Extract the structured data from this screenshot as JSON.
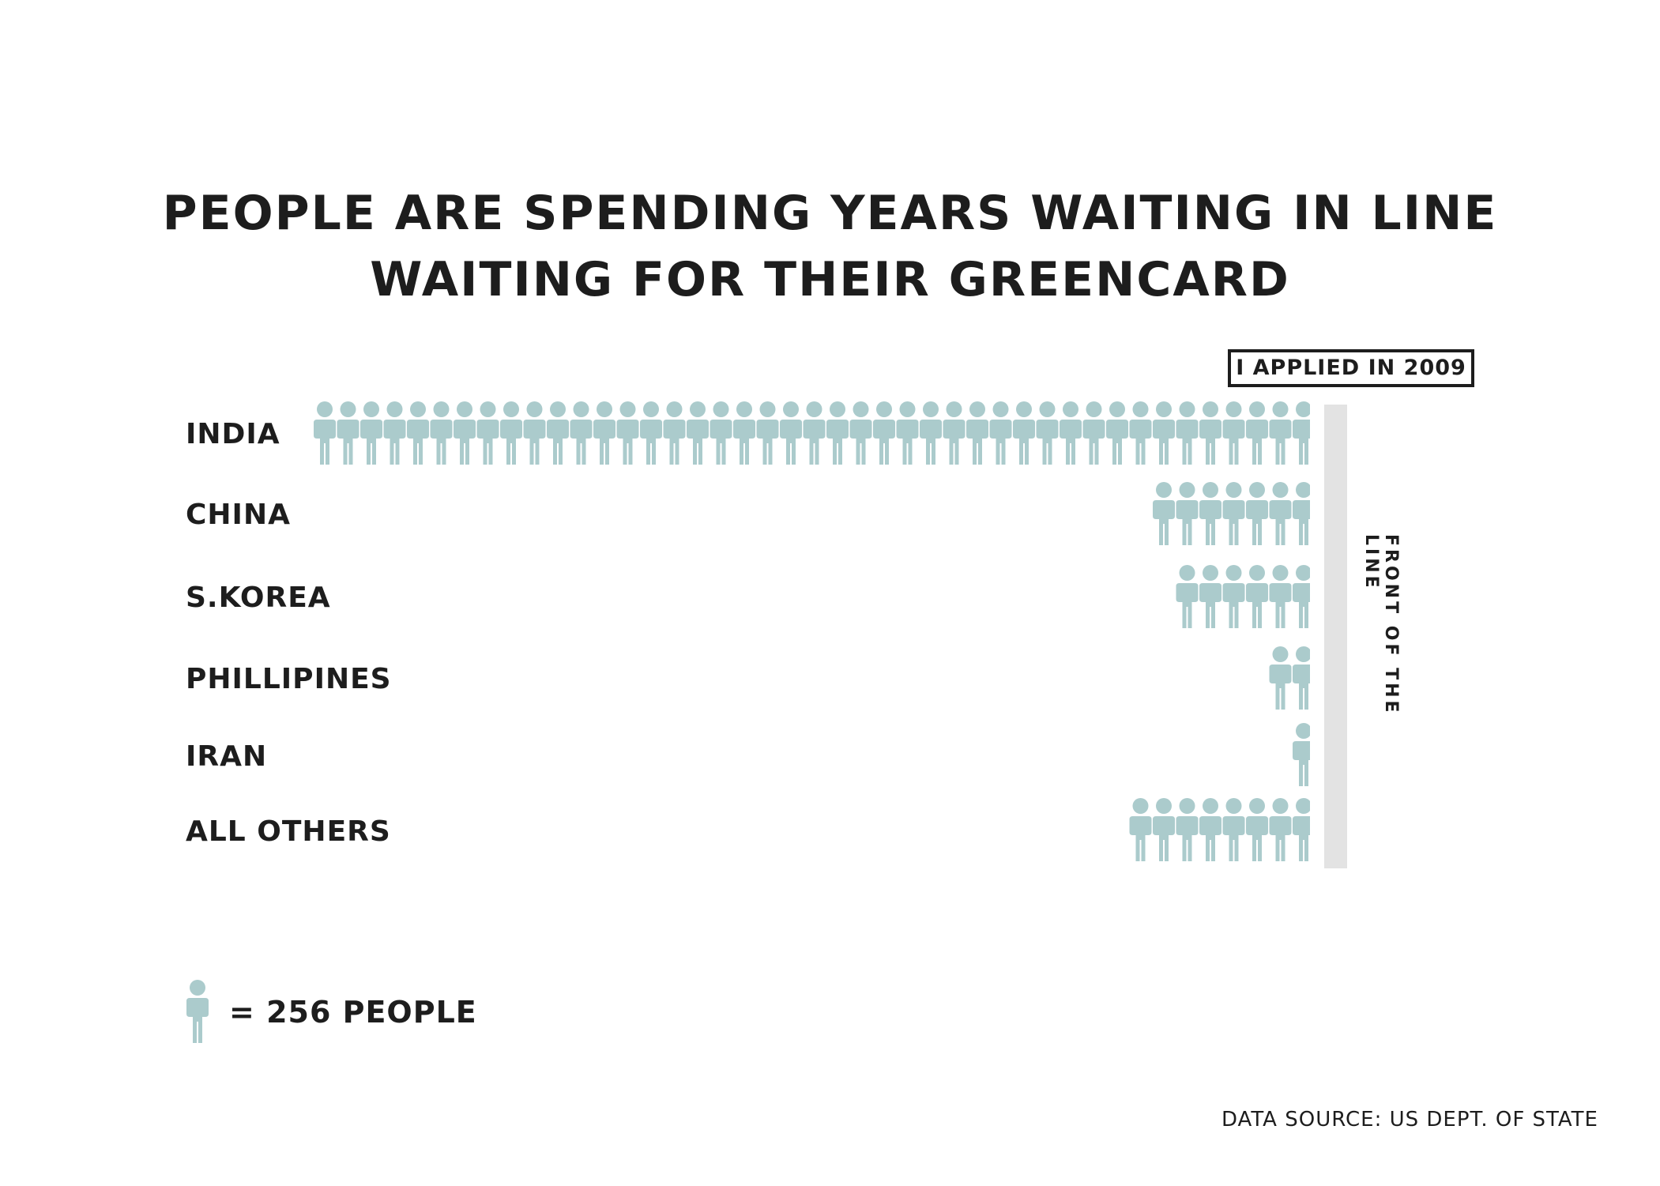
{
  "title": {
    "line1": "PEOPLE ARE SPENDING YEARS WAITING IN LINE",
    "line2": "WAITING FOR THEIR GREENCARD"
  },
  "callout": "I APPLIED IN 2009",
  "front_label": "FRONT OF THE LINE",
  "legend": {
    "text": "= 256 PEOPLE",
    "icon": "person-icon"
  },
  "source": "DATA SOURCE: US DEPT. OF STATE",
  "colors": {
    "icon": "#abcbcc",
    "bar": "#e3e3e3",
    "text": "#1d1d1d"
  },
  "chart_data": {
    "type": "pictogram",
    "unit": 256,
    "categories": [
      "INDIA",
      "CHINA",
      "S.KOREA",
      "PHILLIPINES",
      "IRAN",
      "ALL OTHERS"
    ],
    "values": [
      43,
      6.5,
      5.5,
      1.5,
      1,
      7.5
    ]
  }
}
